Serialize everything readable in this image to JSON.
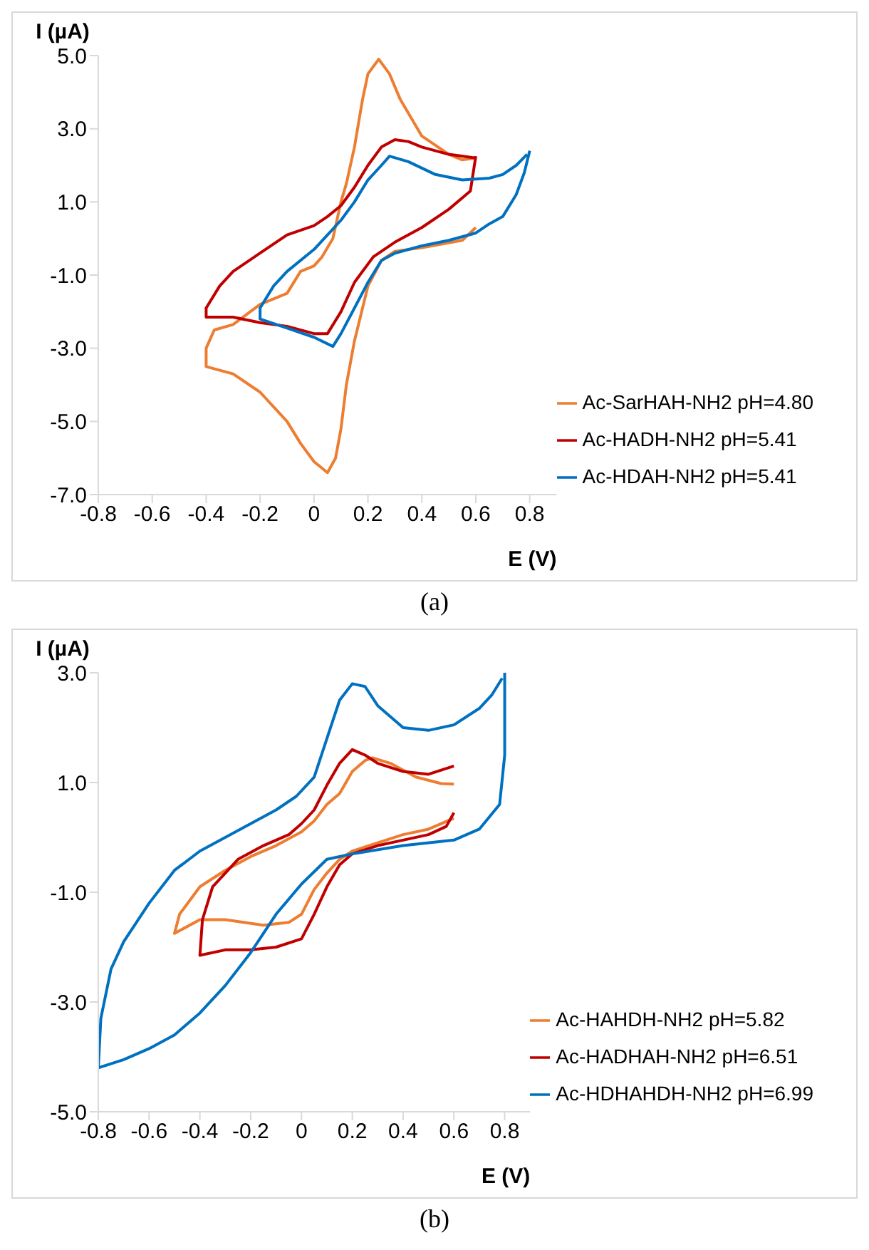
{
  "chart_data": [
    {
      "type": "line",
      "ylabel": "I (µA)",
      "xlabel": "E (V)",
      "annotations": [
        "(a)"
      ],
      "legend": "bottom right",
      "xlim": [
        -0.8,
        0.9
      ],
      "xticks": [
        -0.8,
        -0.6,
        -0.4,
        -0.2,
        0,
        0.2,
        0.4,
        0.6,
        0.8
      ],
      "ylim": [
        -7,
        5
      ],
      "yticks": [
        {
          "value": -7,
          "label": "-7.0"
        },
        {
          "value": -5,
          "label": "-5.0"
        },
        {
          "value": -3,
          "label": "-3.0"
        },
        {
          "value": -1,
          "label": "-1.0"
        },
        {
          "value": 1,
          "label": "1.0"
        },
        {
          "value": 3,
          "label": "3.0"
        },
        {
          "value": 5,
          "label": "5.0"
        }
      ],
      "series": [
        {
          "name": "Ac-SarHAH-NH2 pH=4.80",
          "color": "#ed7d31",
          "x": [
            0.6,
            0.55,
            0.4,
            0.3,
            0.25,
            0.2,
            0.15,
            0.12,
            0.1,
            0.08,
            0.05,
            0.0,
            -0.05,
            -0.1,
            -0.2,
            -0.3,
            -0.4,
            -0.4,
            -0.37,
            -0.3,
            -0.2,
            -0.1,
            -0.05,
            0.0,
            0.03,
            0.07,
            0.1,
            0.12,
            0.15,
            0.18,
            0.2,
            0.24,
            0.28,
            0.32,
            0.4,
            0.5,
            0.55,
            0.6
          ],
          "values": [
            0.3,
            -0.05,
            -0.25,
            -0.35,
            -0.6,
            -1.3,
            -2.8,
            -4.0,
            -5.2,
            -6.0,
            -6.4,
            -6.1,
            -5.6,
            -5.0,
            -4.2,
            -3.7,
            -3.5,
            -3.0,
            -2.5,
            -2.35,
            -1.8,
            -1.5,
            -0.9,
            -0.75,
            -0.5,
            0.0,
            1.0,
            1.5,
            2.5,
            3.8,
            4.5,
            4.9,
            4.5,
            3.8,
            2.8,
            2.3,
            2.15,
            2.2
          ]
        },
        {
          "name": "Ac-HADH-NH2 pH=5.41",
          "color": "#c00000",
          "x": [
            0.6,
            0.58,
            0.5,
            0.4,
            0.3,
            0.22,
            0.15,
            0.1,
            0.05,
            0.0,
            -0.1,
            -0.2,
            -0.3,
            -0.4,
            -0.4,
            -0.35,
            -0.3,
            -0.2,
            -0.1,
            0.0,
            0.05,
            0.1,
            0.15,
            0.2,
            0.25,
            0.3,
            0.35,
            0.4,
            0.5,
            0.6
          ],
          "values": [
            2.25,
            1.3,
            0.8,
            0.3,
            -0.1,
            -0.5,
            -1.2,
            -2.0,
            -2.6,
            -2.6,
            -2.4,
            -2.3,
            -2.15,
            -2.15,
            -1.9,
            -1.3,
            -0.9,
            -0.4,
            0.1,
            0.35,
            0.6,
            0.9,
            1.4,
            2.0,
            2.5,
            2.7,
            2.65,
            2.5,
            2.3,
            2.2
          ]
        },
        {
          "name": "Ac-HDAH-NH2 pH=5.41",
          "color": "#0070c0",
          "x": [
            0.8,
            0.78,
            0.75,
            0.7,
            0.65,
            0.6,
            0.5,
            0.4,
            0.3,
            0.25,
            0.2,
            0.15,
            0.1,
            0.07,
            0.0,
            -0.1,
            -0.2,
            -0.2,
            -0.15,
            -0.1,
            0.0,
            0.05,
            0.1,
            0.15,
            0.2,
            0.25,
            0.28,
            0.35,
            0.45,
            0.55,
            0.65,
            0.7,
            0.75,
            0.79
          ],
          "values": [
            2.4,
            1.8,
            1.2,
            0.6,
            0.4,
            0.15,
            -0.05,
            -0.2,
            -0.4,
            -0.6,
            -1.2,
            -1.9,
            -2.6,
            -2.95,
            -2.7,
            -2.45,
            -2.2,
            -1.9,
            -1.3,
            -0.9,
            -0.3,
            0.1,
            0.5,
            1.0,
            1.6,
            2.0,
            2.25,
            2.1,
            1.75,
            1.6,
            1.65,
            1.75,
            2.0,
            2.3
          ]
        }
      ]
    },
    {
      "type": "line",
      "ylabel": "I (µA)",
      "xlabel": "E (V)",
      "annotations": [
        "(b)"
      ],
      "legend": "bottom right",
      "xlim": [
        -0.8,
        0.9
      ],
      "xticks": [
        -0.8,
        -0.6,
        -0.4,
        -0.2,
        0,
        0.2,
        0.4,
        0.6,
        0.8
      ],
      "ylim": [
        -5,
        3
      ],
      "yticks": [
        {
          "value": -5,
          "label": "-5.0"
        },
        {
          "value": -3,
          "label": "-3.0"
        },
        {
          "value": -1,
          "label": "-1.0"
        },
        {
          "value": 1,
          "label": "1.0"
        },
        {
          "value": 3,
          "label": "3.0"
        }
      ],
      "series": [
        {
          "name": "Ac-HAHDH-NH2 pH=5.82",
          "color": "#ed7d31",
          "x": [
            0.6,
            0.5,
            0.4,
            0.3,
            0.2,
            0.15,
            0.1,
            0.05,
            0.0,
            -0.05,
            -0.15,
            -0.3,
            -0.4,
            -0.5,
            -0.48,
            -0.4,
            -0.3,
            -0.2,
            -0.1,
            0.0,
            0.05,
            0.1,
            0.15,
            0.2,
            0.25,
            0.28,
            0.35,
            0.45,
            0.55,
            0.6
          ],
          "values": [
            0.35,
            0.15,
            0.05,
            -0.1,
            -0.25,
            -0.4,
            -0.65,
            -0.95,
            -1.4,
            -1.55,
            -1.6,
            -1.5,
            -1.5,
            -1.75,
            -1.4,
            -0.9,
            -0.6,
            -0.35,
            -0.15,
            0.1,
            0.3,
            0.6,
            0.8,
            1.2,
            1.4,
            1.45,
            1.35,
            1.1,
            0.98,
            0.97
          ]
        },
        {
          "name": "Ac-HADHAH-NH2 pH=6.51",
          "color": "#c00000",
          "x": [
            0.6,
            0.57,
            0.5,
            0.4,
            0.3,
            0.2,
            0.15,
            0.1,
            0.05,
            0.0,
            -0.1,
            -0.2,
            -0.3,
            -0.4,
            -0.39,
            -0.35,
            -0.25,
            -0.15,
            -0.05,
            0.0,
            0.05,
            0.1,
            0.15,
            0.2,
            0.25,
            0.3,
            0.4,
            0.5,
            0.6
          ],
          "values": [
            0.45,
            0.2,
            0.05,
            -0.05,
            -0.15,
            -0.3,
            -0.5,
            -0.9,
            -1.4,
            -1.85,
            -2.0,
            -2.05,
            -2.05,
            -2.15,
            -1.5,
            -0.9,
            -0.4,
            -0.15,
            0.05,
            0.25,
            0.5,
            0.95,
            1.35,
            1.6,
            1.5,
            1.35,
            1.2,
            1.15,
            1.3
          ]
        },
        {
          "name": "Ac-HDHAHDH-NH2 pH=6.99",
          "color": "#0070c0",
          "x": [
            0.8,
            0.8,
            0.78,
            0.7,
            0.6,
            0.4,
            0.2,
            0.1,
            0.0,
            -0.1,
            -0.2,
            -0.3,
            -0.4,
            -0.5,
            -0.6,
            -0.7,
            -0.8,
            -0.79,
            -0.75,
            -0.7,
            -0.6,
            -0.5,
            -0.4,
            -0.3,
            -0.2,
            -0.1,
            -0.02,
            0.05,
            0.1,
            0.15,
            0.2,
            0.25,
            0.3,
            0.4,
            0.5,
            0.6,
            0.7,
            0.75,
            0.79
          ],
          "values": [
            3.0,
            1.5,
            0.6,
            0.15,
            -0.05,
            -0.15,
            -0.3,
            -0.4,
            -0.85,
            -1.4,
            -2.1,
            -2.7,
            -3.2,
            -3.6,
            -3.85,
            -4.05,
            -4.2,
            -3.3,
            -2.4,
            -1.9,
            -1.2,
            -0.6,
            -0.25,
            0.0,
            0.25,
            0.5,
            0.75,
            1.1,
            1.8,
            2.5,
            2.8,
            2.75,
            2.4,
            2.0,
            1.95,
            2.05,
            2.35,
            2.6,
            2.9
          ]
        }
      ]
    }
  ]
}
